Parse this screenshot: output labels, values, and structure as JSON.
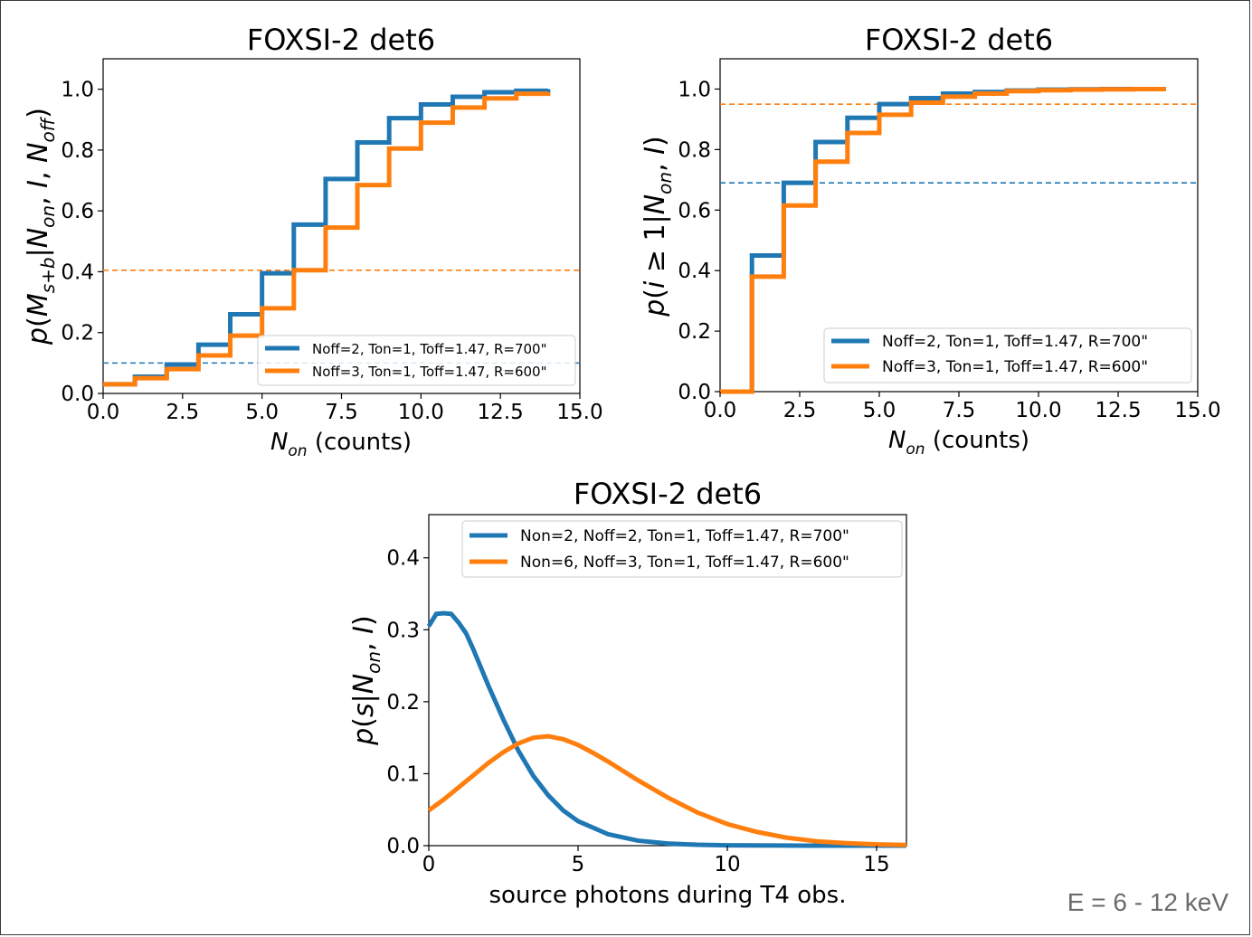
{
  "footer": {
    "energy_range": "E = 6 - 12 keV"
  },
  "colors": {
    "series1": "#1f77b4",
    "series2": "#ff7f0e",
    "axis": "#000000"
  },
  "chart_data": [
    {
      "type": "line",
      "step": "post",
      "title": "FOXSI-2 det6",
      "xlabel": "N_on (counts)",
      "ylabel": "p(M_s+b|N_on, I, N_off)",
      "xlim": [
        0,
        15
      ],
      "ylim": [
        0,
        1.1
      ],
      "xticks": [
        0,
        2.5,
        5,
        7.5,
        10,
        12.5,
        15
      ],
      "xtick_labels": [
        "0.0",
        "2.5",
        "5.0",
        "7.5",
        "10.0",
        "12.5",
        "15.0"
      ],
      "yticks": [
        0,
        0.2,
        0.4,
        0.6,
        0.8,
        1.0
      ],
      "ytick_labels": [
        "0.0",
        "0.2",
        "0.4",
        "0.6",
        "0.8",
        "1.0"
      ],
      "legend_position": "lower-right",
      "legend_font_px": 15,
      "series": [
        {
          "name": "Noff=2, Ton=1, Toff=1.47, R=700\"",
          "x": [
            0,
            1,
            2,
            3,
            4,
            5,
            6,
            7,
            8,
            9,
            10,
            11,
            12,
            13,
            14
          ],
          "y": [
            0.03,
            0.055,
            0.095,
            0.16,
            0.26,
            0.395,
            0.555,
            0.705,
            0.825,
            0.905,
            0.95,
            0.975,
            0.99,
            0.995,
            1.0
          ]
        },
        {
          "name": "Noff=3, Ton=1, Toff=1.47, R=600\"",
          "x": [
            0,
            1,
            2,
            3,
            4,
            5,
            6,
            7,
            8,
            9,
            10,
            11,
            12,
            13,
            14
          ],
          "y": [
            0.03,
            0.05,
            0.08,
            0.125,
            0.19,
            0.28,
            0.405,
            0.545,
            0.685,
            0.805,
            0.89,
            0.94,
            0.97,
            0.985,
            0.99
          ]
        }
      ],
      "hlines": [
        {
          "y": 0.1,
          "color": "#1f77b4",
          "style": "dashed"
        },
        {
          "y": 0.405,
          "color": "#ff7f0e",
          "style": "dashed"
        }
      ]
    },
    {
      "type": "line",
      "step": "post",
      "title": "FOXSI-2 det6",
      "xlabel": "N_on (counts)",
      "ylabel": "p(i ≥ 1|N_on, I)",
      "xlim": [
        0,
        15
      ],
      "ylim": [
        0,
        1.1
      ],
      "xticks": [
        0,
        2.5,
        5,
        7.5,
        10,
        12.5,
        15
      ],
      "xtick_labels": [
        "0.0",
        "2.5",
        "5.0",
        "7.5",
        "10.0",
        "12.5",
        "15.0"
      ],
      "yticks": [
        0,
        0.2,
        0.4,
        0.6,
        0.8,
        1.0
      ],
      "ytick_labels": [
        "0.0",
        "0.2",
        "0.4",
        "0.6",
        "0.8",
        "1.0"
      ],
      "legend_position": "lower-right",
      "legend_font_px": 17,
      "series": [
        {
          "name": "Noff=2, Ton=1, Toff=1.47, R=700\"",
          "x": [
            0,
            1,
            2,
            3,
            4,
            5,
            6,
            7,
            8,
            9,
            10,
            11,
            12,
            13,
            14
          ],
          "y": [
            0.0,
            0.45,
            0.69,
            0.825,
            0.905,
            0.95,
            0.97,
            0.985,
            0.99,
            0.995,
            0.998,
            0.999,
            1.0,
            1.0,
            1.0
          ]
        },
        {
          "name": "Noff=3, Ton=1, Toff=1.47, R=600\"",
          "x": [
            0,
            1,
            2,
            3,
            4,
            5,
            6,
            7,
            8,
            9,
            10,
            11,
            12,
            13,
            14
          ],
          "y": [
            0.0,
            0.38,
            0.615,
            0.76,
            0.855,
            0.915,
            0.955,
            0.975,
            0.985,
            0.993,
            0.996,
            0.998,
            0.999,
            1.0,
            1.0
          ]
        }
      ],
      "hlines": [
        {
          "y": 0.69,
          "color": "#1f77b4",
          "style": "dashed"
        },
        {
          "y": 0.95,
          "color": "#ff7f0e",
          "style": "dashed"
        }
      ]
    },
    {
      "type": "line",
      "title": "FOXSI-2 det6",
      "xlabel": "source photons during T4 obs.",
      "ylabel": "p(s|N_on, I)",
      "xlim": [
        0,
        16
      ],
      "ylim": [
        0,
        0.46
      ],
      "xticks": [
        0,
        5,
        10,
        15
      ],
      "xtick_labels": [
        "0",
        "5",
        "10",
        "15"
      ],
      "yticks": [
        0,
        0.1,
        0.2,
        0.3,
        0.4
      ],
      "ytick_labels": [
        "0.0",
        "0.1",
        "0.2",
        "0.3",
        "0.4"
      ],
      "legend_position": "upper-right",
      "legend_font_px": 17,
      "series": [
        {
          "name": "Non=2, Noff=2, Ton=1, Toff=1.47, R=700\"",
          "x": [
            0,
            0.25,
            0.5,
            0.75,
            1,
            1.25,
            1.5,
            2,
            2.5,
            3,
            3.5,
            4,
            4.5,
            5,
            6,
            7,
            8,
            9,
            10,
            12,
            14,
            16
          ],
          "y": [
            0.305,
            0.322,
            0.323,
            0.322,
            0.31,
            0.295,
            0.272,
            0.222,
            0.175,
            0.132,
            0.097,
            0.07,
            0.049,
            0.034,
            0.016,
            0.007,
            0.003,
            0.0012,
            0.0005,
            0.0001,
            0.0,
            0.0
          ]
        },
        {
          "name": "Non=6, Noff=3, Ton=1, Toff=1.47, R=600\"",
          "x": [
            0,
            0.5,
            1,
            1.5,
            2,
            2.5,
            3,
            3.5,
            4,
            4.5,
            5,
            5.5,
            6,
            7,
            8,
            9,
            10,
            11,
            12,
            13,
            14,
            15,
            16
          ],
          "y": [
            0.049,
            0.064,
            0.081,
            0.098,
            0.115,
            0.13,
            0.142,
            0.15,
            0.152,
            0.148,
            0.14,
            0.129,
            0.117,
            0.091,
            0.067,
            0.046,
            0.03,
            0.019,
            0.011,
            0.006,
            0.0035,
            0.0018,
            0.0009
          ]
        }
      ],
      "hlines": []
    }
  ]
}
